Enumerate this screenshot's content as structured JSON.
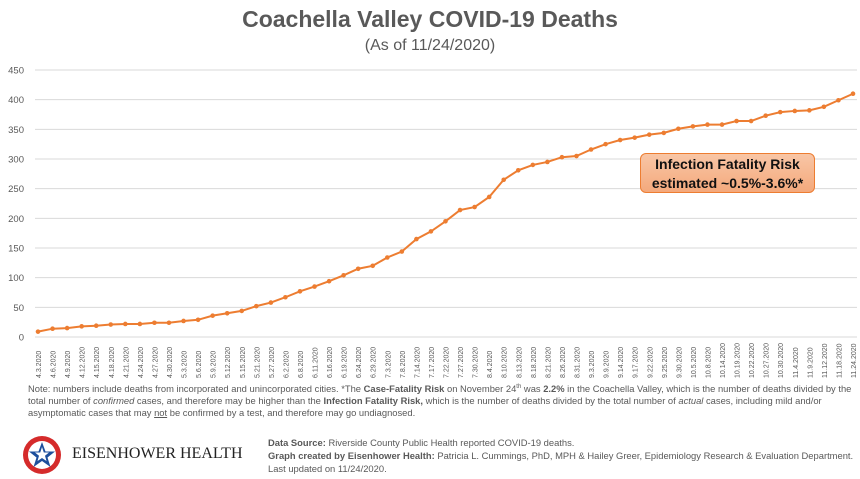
{
  "chart_data": {
    "type": "line",
    "title": "Coachella Valley COVID-19 Deaths",
    "subtitle": "(As of 11/24/2020)",
    "xlabel": "",
    "ylabel": "",
    "ylim": [
      0,
      450
    ],
    "yticks": [
      0,
      50,
      100,
      150,
      200,
      250,
      300,
      350,
      400,
      450
    ],
    "grid": true,
    "color": "#ed7d31",
    "categories": [
      "4.3.2020",
      "4.6.2020",
      "4.9.2020",
      "4.12.2020",
      "4.15.2020",
      "4.18.2020",
      "4.21.2020",
      "4.24.2020",
      "4.27.2020",
      "4.30.2020",
      "5.3.2020",
      "5.6.2020",
      "5.9.2020",
      "5.12.2020",
      "5.15.2020",
      "5.21.2020",
      "5.27.2020",
      "6.2.2020",
      "6.8.2020",
      "6.11.2020",
      "6.16.2020",
      "6.19.2020",
      "6.24.2020",
      "6.29.2020",
      "7.3.2020",
      "7.8.2020",
      "7.14.2020",
      "7.17.2020",
      "7.22.2020",
      "7.27.2020",
      "7.30.2020",
      "8.4.2020",
      "8.10.2020",
      "8.13.2020",
      "8.18.2020",
      "8.21.2020",
      "8.26.2020",
      "8.31.2020",
      "9.3.2020",
      "9.9.2020",
      "9.14.2020",
      "9.17.2020",
      "9.22.2020",
      "9.25.2020",
      "9.30.2020",
      "10.5.2020",
      "10.8.2020",
      "10.14.2020",
      "10.19.2020",
      "10.22.2020",
      "10.27.2020",
      "10.30.2020",
      "11.4.2020",
      "11.9.2020",
      "11.12.2020",
      "11.18.2020",
      "11.24.2020"
    ],
    "values": [
      9,
      14,
      15,
      18,
      19,
      21,
      22,
      22,
      24,
      24,
      27,
      29,
      36,
      40,
      44,
      52,
      58,
      67,
      77,
      85,
      94,
      104,
      115,
      120,
      134,
      144,
      165,
      178,
      195,
      214,
      219,
      236,
      265,
      281,
      290,
      295,
      303,
      305,
      316,
      325,
      332,
      336,
      341,
      344,
      351,
      355,
      358,
      358,
      364,
      364,
      373,
      379,
      381,
      382,
      388,
      399,
      410
    ],
    "annotation": {
      "line1": "Infection Fatality Risk",
      "line2": "estimated ~0.5%-3.6%*"
    }
  },
  "footer": {
    "note_parts": [
      "Note: numbers include deaths from incorporated and unincorporated cities. *The ",
      "Case-Fatality Risk",
      " on November 24",
      "th",
      " was ",
      "2.2%",
      " in the Coachella Valley, which is the number of deaths divided by the total number of ",
      "confirmed",
      " cases, and therefore may be higher than the ",
      "Infection Fatality Risk,",
      " which is the number of deaths divided by the total number of ",
      "actual",
      " cases, including mild and/or asymptomatic cases that may ",
      "not",
      " be confirmed by a test, and therefore may go undiagnosed."
    ],
    "source_label": "Data Source:",
    "source_text": " Riverside County Public Health reported COVID-19 deaths.",
    "credit_label": "Graph created by Eisenhower Health:",
    "credit_text": " Patricia L. Cummings, PhD, MPH & Hailey Greer, Epidemiology Research & Evaluation Department. Last updated on 11/24/2020.",
    "logo_text": "EISENHOWER HEALTH"
  }
}
